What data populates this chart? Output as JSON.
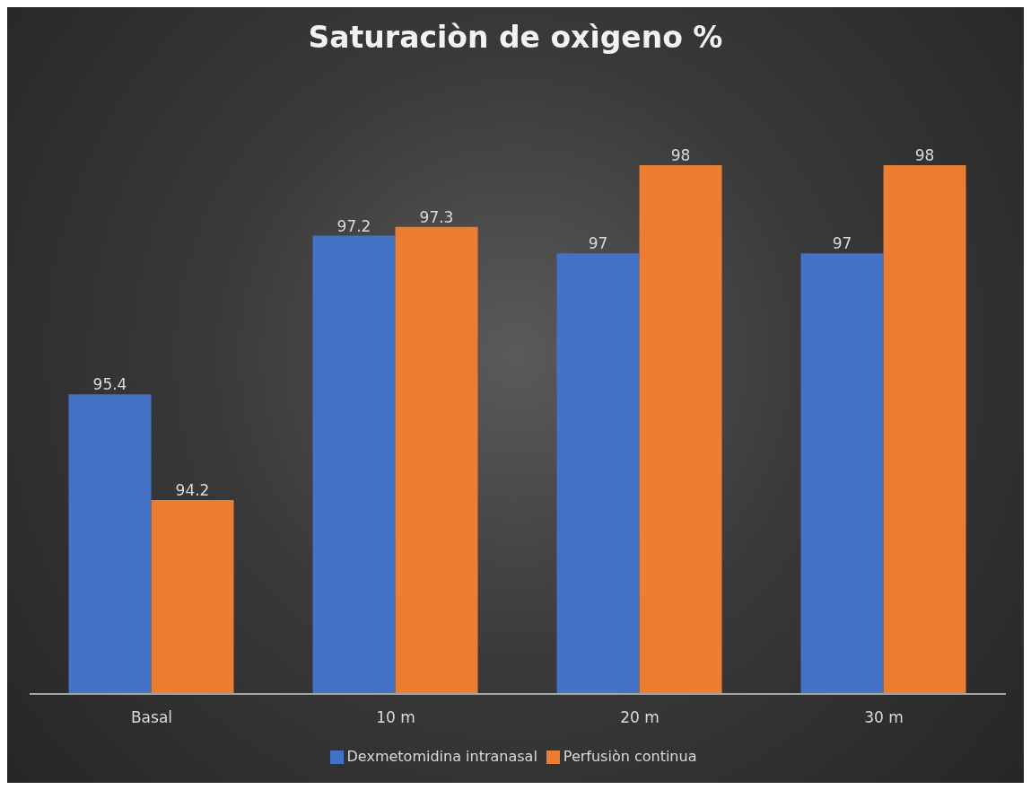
{
  "chart_data": {
    "type": "bar",
    "title": "Saturaciòn de oxìgeno %",
    "categories": [
      "Basal",
      "10 m",
      "20 m",
      "30 m"
    ],
    "series": [
      {
        "name": "Dexmetomidina intranasal",
        "color": "#4472c4",
        "values": [
          95.4,
          97.2,
          97,
          97
        ]
      },
      {
        "name": "Perfusiòn continua",
        "color": "#ed7d31",
        "values": [
          94.2,
          97.3,
          98,
          98
        ]
      }
    ],
    "ylim": [
      92,
      98
    ],
    "data_labels": true,
    "legend": "bottom",
    "grid": false,
    "tick_labels": "x"
  }
}
